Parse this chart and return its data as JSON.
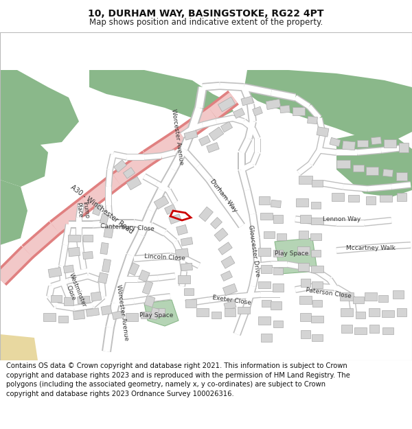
{
  "title": "10, DURHAM WAY, BASINGSTOKE, RG22 4PT",
  "subtitle": "Map shows position and indicative extent of the property.",
  "footer": "Contains OS data © Crown copyright and database right 2021. This information is subject to Crown copyright and database rights 2023 and is reproduced with the permission of HM Land Registry. The polygons (including the associated geometry, namely x, y co-ordinates) are subject to Crown copyright and database rights 2023 Ordnance Survey 100026316.",
  "title_fontsize": 10,
  "subtitle_fontsize": 8.5,
  "footer_fontsize": 7.2,
  "map_bg": "#f0f0ee",
  "road_color": "#ffffff",
  "road_outline": "#c0c0c0",
  "green_dark": "#8ab88a",
  "green_light": "#b5d4b5",
  "a_road_fill": "#f2c8c8",
  "a_road_edge": "#e08080",
  "building_color": "#d4d4d4",
  "building_outline": "#aaaaaa",
  "property_color": "#cc0000",
  "label_color": "#444444",
  "fig_bg": "#ffffff",
  "map_border": "#bbbbbb"
}
